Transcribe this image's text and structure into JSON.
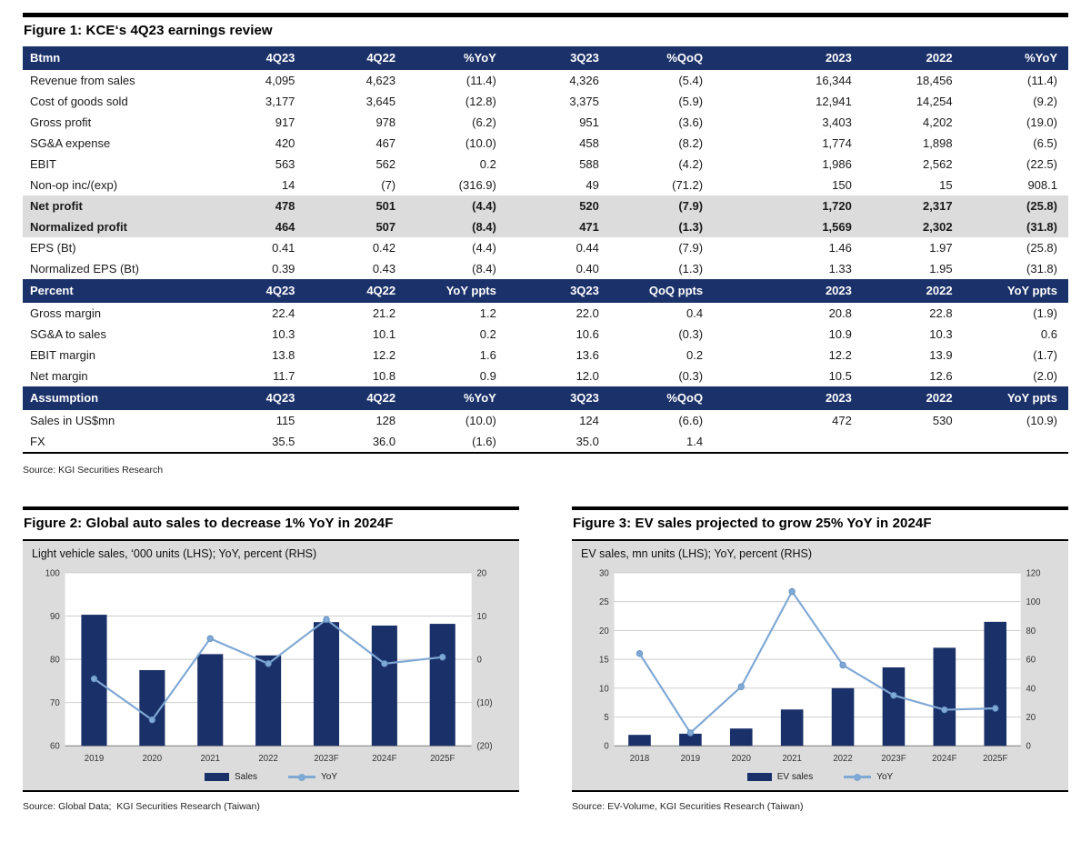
{
  "colors": {
    "navy": "#1A3068",
    "header_navy": "#1B3169",
    "highlight": "#DCDCDC",
    "chart_bg": "#DCDCDC",
    "line_blue": "#7FA8D4",
    "marker_stroke": "#5E8FC0",
    "grid": "#CFCFCF",
    "axis": "#7F7F7F"
  },
  "figure1": {
    "title": "Figure 1: KCE‘s 4Q23 earnings review",
    "source": "Source: KGI Securities Research",
    "table": {
      "sections": [
        {
          "header": [
            "Btmn",
            "4Q23",
            "4Q22",
            "%YoY",
            "3Q23",
            "%QoQ",
            "2023",
            "2022",
            "%YoY"
          ],
          "rows": [
            {
              "highlight": false,
              "cells": [
                "Revenue from sales",
                "4,095",
                "4,623",
                "(11.4)",
                "4,326",
                "(5.4)",
                "16,344",
                "18,456",
                "(11.4)"
              ]
            },
            {
              "highlight": false,
              "cells": [
                "Cost of goods sold",
                "3,177",
                "3,645",
                "(12.8)",
                "3,375",
                "(5.9)",
                "12,941",
                "14,254",
                "(9.2)"
              ]
            },
            {
              "highlight": false,
              "cells": [
                "Gross profit",
                "917",
                "978",
                "(6.2)",
                "951",
                "(3.6)",
                "3,403",
                "4,202",
                "(19.0)"
              ]
            },
            {
              "highlight": false,
              "cells": [
                "SG&A expense",
                "420",
                "467",
                "(10.0)",
                "458",
                "(8.2)",
                "1,774",
                "1,898",
                "(6.5)"
              ]
            },
            {
              "highlight": false,
              "cells": [
                "EBIT",
                "563",
                "562",
                "0.2",
                "588",
                "(4.2)",
                "1,986",
                "2,562",
                "(22.5)"
              ]
            },
            {
              "highlight": false,
              "cells": [
                "Non-op inc/(exp)",
                "14",
                "(7)",
                "(316.9)",
                "49",
                "(71.2)",
                "150",
                "15",
                "908.1"
              ]
            },
            {
              "highlight": true,
              "cells": [
                "Net profit",
                "478",
                "501",
                "(4.4)",
                "520",
                "(7.9)",
                "1,720",
                "2,317",
                "(25.8)"
              ]
            },
            {
              "highlight": true,
              "cells": [
                "Normalized profit",
                "464",
                "507",
                "(8.4)",
                "471",
                "(1.3)",
                "1,569",
                "2,302",
                "(31.8)"
              ]
            },
            {
              "highlight": false,
              "cells": [
                "EPS (Bt)",
                "0.41",
                "0.42",
                "(4.4)",
                "0.44",
                "(7.9)",
                "1.46",
                "1.97",
                "(25.8)"
              ]
            },
            {
              "highlight": false,
              "cells": [
                "Normalized EPS (Bt)",
                "0.39",
                "0.43",
                "(8.4)",
                "0.40",
                "(1.3)",
                "1.33",
                "1.95",
                "(31.8)"
              ]
            }
          ]
        },
        {
          "header": [
            "Percent",
            "4Q23",
            "4Q22",
            "YoY ppts",
            "3Q23",
            "QoQ ppts",
            "2023",
            "2022",
            "YoY ppts"
          ],
          "rows": [
            {
              "highlight": false,
              "cells": [
                "Gross margin",
                "22.4",
                "21.2",
                "1.2",
                "22.0",
                "0.4",
                "20.8",
                "22.8",
                "(1.9)"
              ]
            },
            {
              "highlight": false,
              "cells": [
                "SG&A to sales",
                "10.3",
                "10.1",
                "0.2",
                "10.6",
                "(0.3)",
                "10.9",
                "10.3",
                "0.6"
              ]
            },
            {
              "highlight": false,
              "cells": [
                "EBIT margin",
                "13.8",
                "12.2",
                "1.6",
                "13.6",
                "0.2",
                "12.2",
                "13.9",
                "(1.7)"
              ]
            },
            {
              "highlight": false,
              "cells": [
                "Net margin",
                "11.7",
                "10.8",
                "0.9",
                "12.0",
                "(0.3)",
                "10.5",
                "12.6",
                "(2.0)"
              ]
            }
          ]
        },
        {
          "header": [
            "Assumption",
            "4Q23",
            "4Q22",
            "%YoY",
            "3Q23",
            "%QoQ",
            "2023",
            "2022",
            "YoY ppts"
          ],
          "rows": [
            {
              "highlight": false,
              "cells": [
                "Sales in US$mn",
                "115",
                "128",
                "(10.0)",
                "124",
                "(6.6)",
                "472",
                "530",
                "(10.9)"
              ]
            },
            {
              "highlight": false,
              "cells": [
                "FX",
                "35.5",
                "36.0",
                "(1.6)",
                "35.0",
                "1.4",
                "",
                "",
                ""
              ]
            }
          ]
        }
      ]
    }
  },
  "figure2": {
    "title": "Figure 2: Global auto sales to decrease 1% YoY in 2024F",
    "source": "Source: Global Data;  KGI Securities Research (Taiwan)"
  },
  "figure3": {
    "title": "Figure 3: EV sales projected to grow 25% YoY in 2024F",
    "source": "Source: EV-Volume, KGI Securities Research (Taiwan)"
  },
  "chart_data": [
    {
      "type": "bar+line",
      "subtitle": "Light vehicle sales, ‘000 units (LHS); YoY, percent (RHS)",
      "categories": [
        "2019",
        "2020",
        "2021",
        "2022",
        "2023F",
        "2024F",
        "2025F"
      ],
      "series": [
        {
          "name": "Sales",
          "type": "bar",
          "axis": "left",
          "values": [
            90.3,
            77.5,
            81.2,
            80.9,
            88.6,
            87.8,
            88.2
          ]
        },
        {
          "name": "YoY",
          "type": "line",
          "axis": "right",
          "values": [
            -4.5,
            -14.0,
            4.8,
            -1.0,
            9.2,
            -1.0,
            0.5
          ]
        }
      ],
      "left_axis": {
        "min": 60,
        "max": 100,
        "step": 10,
        "ticks": [
          "60",
          "70",
          "80",
          "90",
          "100"
        ]
      },
      "right_axis": {
        "min": -20,
        "max": 20,
        "step": 10,
        "ticks": [
          "(20)",
          "(10)",
          "0",
          "10",
          "20"
        ]
      },
      "grid": true,
      "legend_position": "bottom"
    },
    {
      "type": "bar+line",
      "subtitle": "EV sales, mn units (LHS); YoY, percent (RHS)",
      "categories": [
        "2018",
        "2019",
        "2020",
        "2021",
        "2022",
        "2023F",
        "2024F",
        "2025F"
      ],
      "series": [
        {
          "name": "EV sales",
          "type": "bar",
          "axis": "left",
          "values": [
            1.9,
            2.1,
            3.0,
            6.3,
            10.0,
            13.6,
            17.0,
            21.5
          ]
        },
        {
          "name": "YoY",
          "type": "line",
          "axis": "right",
          "values": [
            64,
            9,
            41,
            107,
            56,
            35,
            25,
            26
          ]
        }
      ],
      "left_axis": {
        "min": 0,
        "max": 30,
        "step": 5,
        "ticks": [
          "0",
          "5",
          "10",
          "15",
          "20",
          "25",
          "30"
        ]
      },
      "right_axis": {
        "min": 0,
        "max": 120,
        "step": 20,
        "ticks": [
          "0",
          "20",
          "40",
          "60",
          "80",
          "100",
          "120"
        ]
      },
      "grid": true,
      "legend_position": "bottom"
    }
  ]
}
